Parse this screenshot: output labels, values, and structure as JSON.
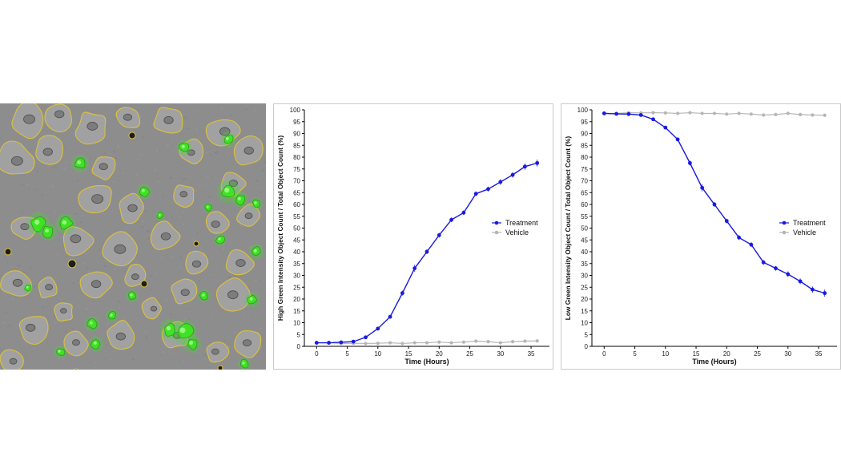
{
  "image": {
    "content": "fluorescence-microscopy-cells"
  },
  "colors": {
    "treatment": "#1a1adf",
    "vehicle": "#b5b5b5",
    "cell_outline": "#e0c437",
    "green_signal": "#39e81c",
    "micro_bg": "#8d8d8d"
  },
  "chart_data": [
    {
      "type": "line",
      "title": "",
      "xlabel": "Time (Hours)",
      "ylabel": "High Green Intensity Object Count / Total Object Count (%)",
      "xlim": [
        -2,
        38
      ],
      "ylim": [
        0,
        100
      ],
      "xticks": [
        0,
        5,
        10,
        15,
        20,
        25,
        30,
        35
      ],
      "xtick_labels": [
        "0",
        "5",
        "10",
        "15",
        "20",
        "25",
        "30",
        "35"
      ],
      "yticks": [
        0,
        5,
        10,
        15,
        20,
        25,
        30,
        35,
        40,
        45,
        50,
        55,
        60,
        65,
        70,
        75,
        80,
        85,
        90,
        95,
        100
      ],
      "ytick_labels": [
        "0",
        "5",
        "10",
        "15",
        "20",
        "25",
        "30",
        "35",
        "40",
        "45",
        "50",
        "55",
        "60",
        "65",
        "70",
        "75",
        "80",
        "85",
        "90",
        "95",
        "100"
      ],
      "legend_position": "right-middle",
      "grid": false,
      "series": [
        {
          "name": "Treatment",
          "color": "#1a1adf",
          "marker": "circle",
          "x": [
            0,
            2,
            4,
            6,
            8,
            10,
            12,
            14,
            16,
            18,
            20,
            22,
            24,
            26,
            28,
            30,
            32,
            34,
            36
          ],
          "y": [
            1.5,
            1.5,
            1.7,
            2,
            3.8,
            7.5,
            12.5,
            22.5,
            33,
            40,
            47,
            53.5,
            56.5,
            64.5,
            66.5,
            69.5,
            72.5,
            76,
            77.5
          ],
          "err": [
            0.3,
            0.3,
            0.3,
            0.3,
            0.5,
            0.6,
            0.8,
            1,
            1.5,
            1,
            1,
            1,
            1,
            1,
            1,
            1.2,
            1.2,
            1.3,
            1.5
          ]
        },
        {
          "name": "Vehicle",
          "color": "#b5b5b5",
          "marker": "circle",
          "x": [
            0,
            2,
            4,
            6,
            8,
            10,
            12,
            14,
            16,
            18,
            20,
            22,
            24,
            26,
            28,
            30,
            32,
            34,
            36
          ],
          "y": [
            1.5,
            1.5,
            1.2,
            1.3,
            1.2,
            1.3,
            1.5,
            1.2,
            1.5,
            1.5,
            1.8,
            1.5,
            1.8,
            2.2,
            2,
            1.5,
            2,
            2.2,
            2.3
          ]
        }
      ]
    },
    {
      "type": "line",
      "title": "",
      "xlabel": "Time (Hours)",
      "ylabel": "Low Green Intensity Object Count / Total Object Count (%)",
      "xlim": [
        -2,
        38
      ],
      "ylim": [
        0,
        100
      ],
      "xticks": [
        0,
        5,
        10,
        15,
        20,
        25,
        30,
        35
      ],
      "xtick_labels": [
        "0",
        "5",
        "10",
        "15",
        "20",
        "25",
        "30",
        "35"
      ],
      "yticks": [
        0,
        5,
        10,
        15,
        20,
        25,
        30,
        35,
        40,
        45,
        50,
        55,
        60,
        65,
        70,
        75,
        80,
        85,
        90,
        95,
        100
      ],
      "ytick_labels": [
        "0",
        "5",
        "10",
        "15",
        "20",
        "25",
        "30",
        "35",
        "40",
        "45",
        "50",
        "55",
        "60",
        "65",
        "70",
        "75",
        "80",
        "85",
        "90",
        "95",
        "100"
      ],
      "legend_position": "right-middle",
      "grid": false,
      "series": [
        {
          "name": "Treatment",
          "color": "#1a1adf",
          "marker": "circle",
          "x": [
            0,
            2,
            4,
            6,
            8,
            10,
            12,
            14,
            16,
            18,
            20,
            22,
            24,
            26,
            28,
            30,
            32,
            34,
            36
          ],
          "y": [
            98.5,
            98.3,
            98.2,
            97.8,
            96,
            92.5,
            87.5,
            77.5,
            67,
            60,
            53,
            46,
            43,
            35.5,
            33,
            30.5,
            27.5,
            24,
            22.5
          ],
          "err": [
            0.3,
            0.3,
            0.3,
            0.3,
            0.5,
            0.6,
            0.8,
            1,
            1.5,
            1,
            1,
            1,
            1,
            1,
            1,
            1.2,
            1.2,
            1.3,
            1.5
          ]
        },
        {
          "name": "Vehicle",
          "color": "#b5b5b5",
          "marker": "circle",
          "x": [
            0,
            2,
            4,
            6,
            8,
            10,
            12,
            14,
            16,
            18,
            20,
            22,
            24,
            26,
            28,
            30,
            32,
            34,
            36
          ],
          "y": [
            98.5,
            98.5,
            98.8,
            98.7,
            98.8,
            98.7,
            98.5,
            98.8,
            98.5,
            98.5,
            98.2,
            98.5,
            98.2,
            97.8,
            98,
            98.5,
            98,
            97.8,
            97.7
          ]
        }
      ]
    }
  ]
}
